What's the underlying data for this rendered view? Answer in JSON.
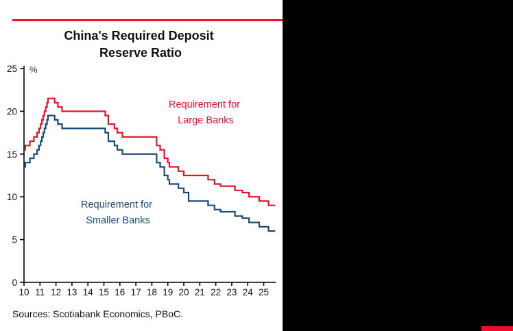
{
  "chart_data": {
    "type": "line",
    "title": "China's Required Deposit Reserve Ratio",
    "title_lines": [
      "China's Required Deposit",
      "Reserve Ratio"
    ],
    "ylabel": "%",
    "xlabel": "",
    "ylim": [
      0,
      25
    ],
    "xlim": [
      10,
      25.75
    ],
    "yticks": [
      0,
      5,
      10,
      15,
      20,
      25
    ],
    "xticks": [
      10,
      11,
      12,
      13,
      14,
      15,
      16,
      17,
      18,
      19,
      20,
      21,
      22,
      23,
      24,
      25
    ],
    "grid": false,
    "legend_position": "inline-annotations",
    "series": [
      {
        "name": "Requirement for Large Banks",
        "color": "#e8112d",
        "steps": [
          [
            10,
            15.5
          ],
          [
            10.08,
            16
          ],
          [
            10.37,
            16.5
          ],
          [
            10.62,
            17
          ],
          [
            10.82,
            17.5
          ],
          [
            10.94,
            18
          ],
          [
            11.04,
            18.5
          ],
          [
            11.12,
            19
          ],
          [
            11.2,
            19.5
          ],
          [
            11.28,
            20
          ],
          [
            11.36,
            20.5
          ],
          [
            11.44,
            21
          ],
          [
            11.5,
            21.5
          ],
          [
            11.92,
            21
          ],
          [
            12.12,
            20.5
          ],
          [
            12.38,
            20
          ],
          [
            15.08,
            19.5
          ],
          [
            15.28,
            18.5
          ],
          [
            15.66,
            18
          ],
          [
            15.84,
            17.5
          ],
          [
            16.16,
            17
          ],
          [
            18.3,
            16
          ],
          [
            18.52,
            15.5
          ],
          [
            18.78,
            14.5
          ],
          [
            19.0,
            14
          ],
          [
            19.1,
            13.5
          ],
          [
            19.66,
            13
          ],
          [
            20.0,
            12.5
          ],
          [
            21.52,
            12
          ],
          [
            21.92,
            11.5
          ],
          [
            22.3,
            11.25
          ],
          [
            23.2,
            10.75
          ],
          [
            23.66,
            10.5
          ],
          [
            24.08,
            10
          ],
          [
            24.72,
            9.5
          ],
          [
            25.3,
            9
          ],
          [
            25.72,
            9
          ]
        ]
      },
      {
        "name": "Requirement for Smaller Banks",
        "color": "#1b4a7a",
        "steps": [
          [
            10,
            13.5
          ],
          [
            10.08,
            14
          ],
          [
            10.37,
            14.5
          ],
          [
            10.62,
            15
          ],
          [
            10.82,
            15.5
          ],
          [
            10.94,
            16
          ],
          [
            11.04,
            16.5
          ],
          [
            11.12,
            17
          ],
          [
            11.2,
            17.5
          ],
          [
            11.28,
            18
          ],
          [
            11.36,
            18.5
          ],
          [
            11.44,
            19
          ],
          [
            11.5,
            19.5
          ],
          [
            11.92,
            19
          ],
          [
            12.12,
            18.5
          ],
          [
            12.38,
            18
          ],
          [
            15.08,
            17.5
          ],
          [
            15.28,
            16.5
          ],
          [
            15.66,
            16
          ],
          [
            15.84,
            15.5
          ],
          [
            16.16,
            15
          ],
          [
            18.3,
            14
          ],
          [
            18.52,
            13.5
          ],
          [
            18.78,
            12.5
          ],
          [
            19.0,
            12
          ],
          [
            19.1,
            11.5
          ],
          [
            19.66,
            11
          ],
          [
            20.0,
            10.5
          ],
          [
            20.3,
            9.5
          ],
          [
            21.52,
            9
          ],
          [
            21.92,
            8.5
          ],
          [
            22.3,
            8.25
          ],
          [
            23.2,
            7.75
          ],
          [
            23.66,
            7.5
          ],
          [
            24.08,
            7
          ],
          [
            24.72,
            6.5
          ],
          [
            25.3,
            6
          ],
          [
            25.72,
            6
          ]
        ]
      }
    ],
    "annotations": [
      {
        "lines": [
          "Requirement for",
          "Large Banks"
        ],
        "color": "#e8112d"
      },
      {
        "lines": [
          "Requirement for",
          "Smaller Banks"
        ],
        "color": "#1b4a7a"
      }
    ]
  },
  "source": "Sources: Scotiabank Economics, PBoC.",
  "colors": {
    "accent_red": "#e8112d",
    "navy": "#1b4a7a",
    "panel_black": "#000000",
    "background": "#ffffff"
  }
}
